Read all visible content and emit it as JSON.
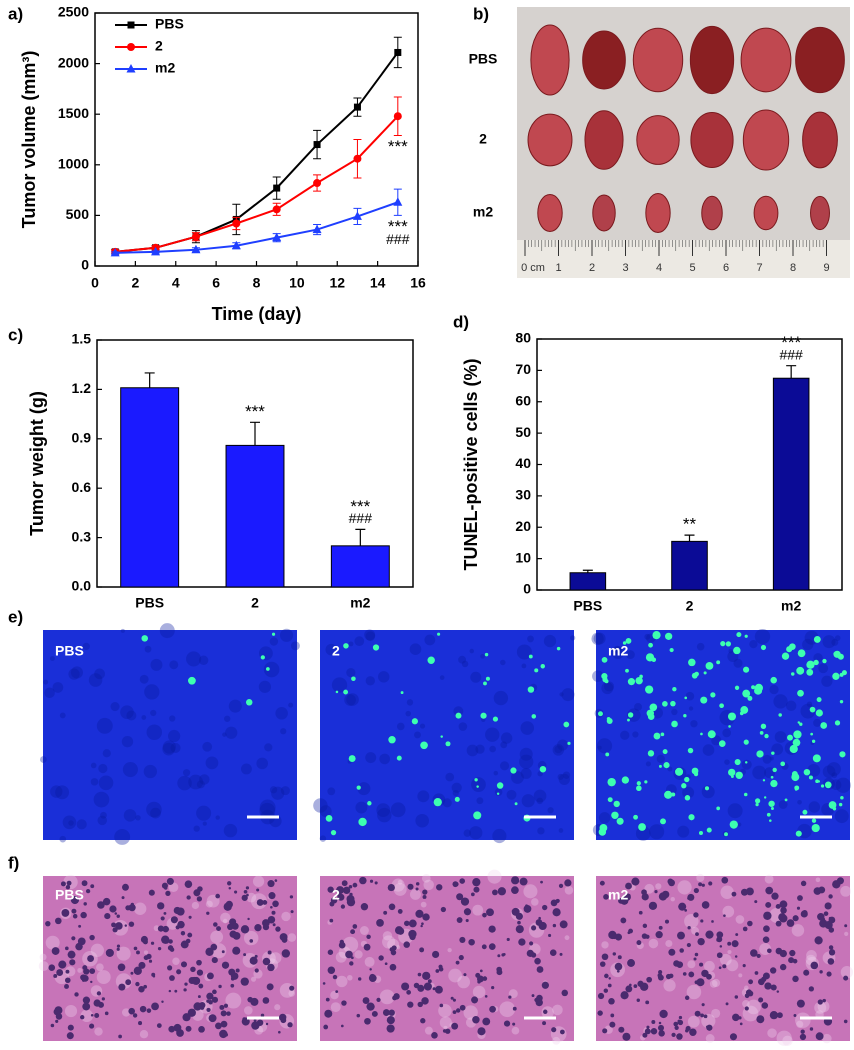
{
  "chart_data": [
    {
      "type": "line",
      "label": "a)",
      "xlabel": "Time (day)",
      "ylabel": "Tumor volume (mm³)",
      "x": [
        1,
        3,
        5,
        7,
        9,
        11,
        13,
        15
      ],
      "series": [
        {
          "name": "PBS",
          "color": "#000000",
          "marker": "square",
          "values": [
            140,
            180,
            290,
            460,
            770,
            1200,
            1570,
            2110
          ],
          "errors": [
            20,
            20,
            60,
            150,
            110,
            140,
            90,
            150
          ]
        },
        {
          "name": "2",
          "color": "#ff0000",
          "marker": "circle",
          "values": [
            140,
            180,
            290,
            420,
            560,
            820,
            1060,
            1480
          ],
          "errors": [
            20,
            20,
            40,
            60,
            60,
            80,
            190,
            190
          ]
        },
        {
          "name": "m2",
          "color": "#1f3fff",
          "marker": "triangle",
          "values": [
            130,
            140,
            160,
            200,
            280,
            360,
            490,
            630
          ],
          "errors": [
            10,
            10,
            20,
            30,
            40,
            50,
            80,
            130
          ]
        }
      ],
      "annotations": [
        {
          "series": "2",
          "texts": [
            "***"
          ]
        },
        {
          "series": "m2",
          "texts": [
            "***",
            "###"
          ]
        }
      ],
      "xlim": [
        0,
        16
      ],
      "xticks": [
        0,
        2,
        4,
        6,
        8,
        10,
        12,
        14,
        16
      ],
      "ylim": [
        0,
        2500
      ],
      "yticks": [
        0,
        500,
        1000,
        1500,
        2000,
        2500
      ],
      "legend": "upper left",
      "grid": false
    },
    {
      "type": "bar",
      "label": "c)",
      "ylabel": "Tumor weight (g)",
      "color": "#1a1aff",
      "categories": [
        "PBS",
        "2",
        "m2"
      ],
      "values": [
        1.21,
        0.86,
        0.25
      ],
      "errors": [
        0.09,
        0.14,
        0.1
      ],
      "annotations": [
        {
          "category": "2",
          "texts": [
            "***"
          ]
        },
        {
          "category": "m2",
          "texts": [
            "***",
            "###"
          ]
        }
      ],
      "ylim": [
        0,
        1.5
      ],
      "yticks": [
        {
          "value": 0,
          "label": "0.0"
        },
        0.3,
        0.6,
        0.9,
        1.2,
        1.5
      ],
      "grid": false
    },
    {
      "type": "bar",
      "label": "d)",
      "ylabel": "TUNEL-positive cells (%)",
      "color": "#0b0b96",
      "categories": [
        "PBS",
        "2",
        "m2"
      ],
      "values": [
        5.5,
        15.5,
        67.5
      ],
      "errors": [
        0.8,
        2,
        4
      ],
      "annotations": [
        {
          "category": "2",
          "texts": [
            "**"
          ]
        },
        {
          "category": "m2",
          "texts": [
            "***",
            "###"
          ]
        }
      ],
      "ylim": [
        0,
        80
      ],
      "yticks": [
        0,
        10,
        20,
        30,
        40,
        50,
        60,
        70,
        80
      ],
      "grid": false
    }
  ],
  "photos": [
    {
      "label": "b)",
      "rows": [
        "PBS",
        "2",
        "m2"
      ],
      "ruler": [
        "0 cm",
        "1",
        "2",
        "3",
        "4",
        "5",
        "6",
        "7",
        "8",
        "9"
      ]
    },
    {
      "label": "e)",
      "panels": [
        "PBS",
        "2",
        "m2"
      ]
    },
    {
      "label": "f)",
      "panels": [
        "PBS",
        "2",
        "m2"
      ]
    }
  ]
}
